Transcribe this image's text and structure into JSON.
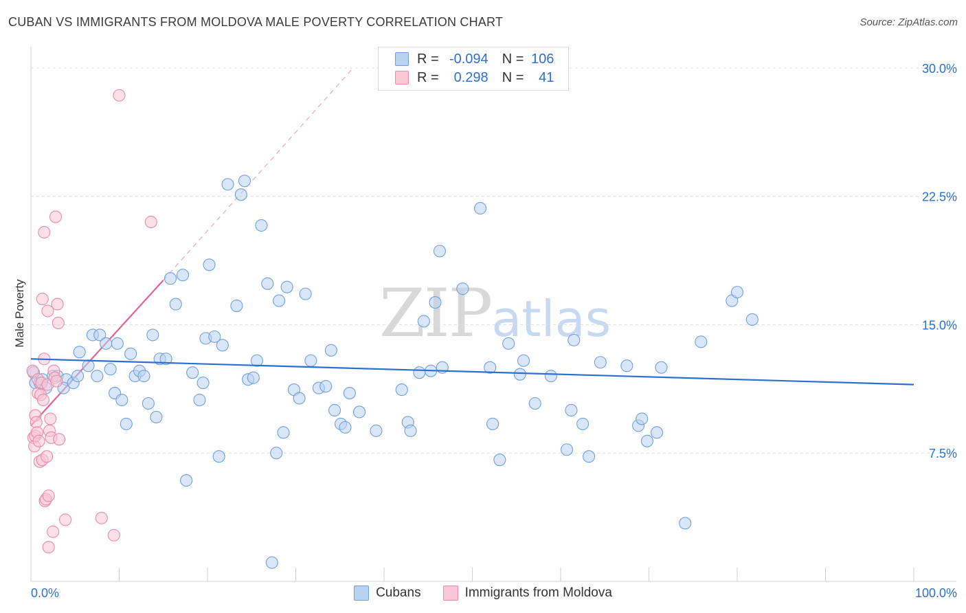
{
  "header": {
    "title": "CUBAN VS IMMIGRANTS FROM MOLDOVA MALE POVERTY CORRELATION CHART",
    "source": "Source: ZipAtlas.com"
  },
  "watermark": {
    "zip": "ZIP",
    "atlas": "atlas"
  },
  "legend_top": {
    "rows": [
      {
        "r_label": "R =",
        "r_value": "-0.094",
        "n_label": "N =",
        "n_value": "106"
      },
      {
        "r_label": "R =",
        "r_value": "0.298",
        "n_label": "N =",
        "n_value": "41"
      }
    ]
  },
  "legend_bottom": {
    "items": [
      "Cubans",
      "Immigrants from Moldova"
    ]
  },
  "colors": {
    "cubans_fill": "#b9d2f2",
    "cubans_stroke": "#6f9fdc",
    "cubans_line": "#2a70d0",
    "moldova_fill": "#f8c6d4",
    "moldova_stroke": "#e98aa8",
    "moldova_line": "#e0648c",
    "axis_label": "#2a6fd1"
  },
  "chart_data": {
    "type": "scatter",
    "title": "CUBAN VS IMMIGRANTS FROM MOLDOVA MALE POVERTY CORRELATION CHART",
    "xlabel": "",
    "ylabel": "Male Poverty",
    "xlim": [
      0,
      100
    ],
    "ylim": [
      0,
      31
    ],
    "x_tick_labels": [
      "0.0%",
      "100.0%"
    ],
    "y_ticks": [
      7.5,
      15.0,
      22.5,
      30.0
    ],
    "y_tick_labels": [
      "7.5%",
      "15.0%",
      "22.5%",
      "30.0%"
    ],
    "grid": true,
    "series": [
      {
        "name": "Cubans",
        "r": -0.094,
        "n": 106,
        "trend": {
          "x": [
            0,
            100
          ],
          "y": [
            13.0,
            11.5
          ]
        },
        "points": [
          [
            0.3,
            12.2
          ],
          [
            0.5,
            11.6
          ],
          [
            1.0,
            11.6
          ],
          [
            1.3,
            11.8
          ],
          [
            1.7,
            11.3
          ],
          [
            2.5,
            12.0
          ],
          [
            3.0,
            12.0
          ],
          [
            4.0,
            11.8
          ],
          [
            3.7,
            11.3
          ],
          [
            4.8,
            11.6
          ],
          [
            5.3,
            12.0
          ],
          [
            5.5,
            13.4
          ],
          [
            6.5,
            12.6
          ],
          [
            7.0,
            14.4
          ],
          [
            7.5,
            12.0
          ],
          [
            7.8,
            14.4
          ],
          [
            8.5,
            13.9
          ],
          [
            9.0,
            12.4
          ],
          [
            9.5,
            11.0
          ],
          [
            9.8,
            13.9
          ],
          [
            10.3,
            10.6
          ],
          [
            10.8,
            9.2
          ],
          [
            11.3,
            13.3
          ],
          [
            11.8,
            12.0
          ],
          [
            12.3,
            12.3
          ],
          [
            12.8,
            12.0
          ],
          [
            13.3,
            10.4
          ],
          [
            13.8,
            14.4
          ],
          [
            14.2,
            9.6
          ],
          [
            14.6,
            13.0
          ],
          [
            15.3,
            13.0
          ],
          [
            15.8,
            17.7
          ],
          [
            16.4,
            16.2
          ],
          [
            17.2,
            17.9
          ],
          [
            17.6,
            5.9
          ],
          [
            18.3,
            12.2
          ],
          [
            19.1,
            10.6
          ],
          [
            19.5,
            11.6
          ],
          [
            19.8,
            14.2
          ],
          [
            20.2,
            18.5
          ],
          [
            20.8,
            14.3
          ],
          [
            21.3,
            7.3
          ],
          [
            21.7,
            13.8
          ],
          [
            22.3,
            23.2
          ],
          [
            23.3,
            16.1
          ],
          [
            23.8,
            22.6
          ],
          [
            24.2,
            23.4
          ],
          [
            24.6,
            11.8
          ],
          [
            25.2,
            11.9
          ],
          [
            25.6,
            12.9
          ],
          [
            26.1,
            20.8
          ],
          [
            26.8,
            17.4
          ],
          [
            27.3,
            1.1
          ],
          [
            27.8,
            7.5
          ],
          [
            28.1,
            16.4
          ],
          [
            28.6,
            8.7
          ],
          [
            29.0,
            17.2
          ],
          [
            29.8,
            11.2
          ],
          [
            30.4,
            10.7
          ],
          [
            31.1,
            16.8
          ],
          [
            31.7,
            12.9
          ],
          [
            32.6,
            11.3
          ],
          [
            33.4,
            11.4
          ],
          [
            34.0,
            13.5
          ],
          [
            34.4,
            10.0
          ],
          [
            35.1,
            9.2
          ],
          [
            35.6,
            9.0
          ],
          [
            36.1,
            11.0
          ],
          [
            37.2,
            9.9
          ],
          [
            39.1,
            8.8
          ],
          [
            42.0,
            11.2
          ],
          [
            42.7,
            9.3
          ],
          [
            43.0,
            8.8
          ],
          [
            44.0,
            12.2
          ],
          [
            44.5,
            15.2
          ],
          [
            45.3,
            12.3
          ],
          [
            45.8,
            16.3
          ],
          [
            46.3,
            19.3
          ],
          [
            46.6,
            12.5
          ],
          [
            48.9,
            17.1
          ],
          [
            50.9,
            21.8
          ],
          [
            52.0,
            12.5
          ],
          [
            52.3,
            9.2
          ],
          [
            53.1,
            7.1
          ],
          [
            54.1,
            13.9
          ],
          [
            55.4,
            12.1
          ],
          [
            55.8,
            12.9
          ],
          [
            57.1,
            10.4
          ],
          [
            58.9,
            12.0
          ],
          [
            60.7,
            7.7
          ],
          [
            61.2,
            10.0
          ],
          [
            61.5,
            14.1
          ],
          [
            62.5,
            9.2
          ],
          [
            63.2,
            7.3
          ],
          [
            64.5,
            12.8
          ],
          [
            67.5,
            12.6
          ],
          [
            68.8,
            9.1
          ],
          [
            69.2,
            9.5
          ],
          [
            69.8,
            8.2
          ],
          [
            70.9,
            8.7
          ],
          [
            71.4,
            12.5
          ],
          [
            74.1,
            3.4
          ],
          [
            75.9,
            14.0
          ],
          [
            79.4,
            16.4
          ],
          [
            80.0,
            16.9
          ],
          [
            81.7,
            15.3
          ]
        ]
      },
      {
        "name": "Immigrants from Moldova",
        "r": 0.298,
        "n": 41,
        "trend": {
          "x": [
            0,
            15
          ],
          "y": [
            9.1,
            17.6
          ]
        },
        "trend_dashed_extension": {
          "x": [
            15,
            36.5
          ],
          "y": [
            17.6,
            30.0
          ]
        },
        "points": [
          [
            0.2,
            12.3
          ],
          [
            0.3,
            8.4
          ],
          [
            0.4,
            7.9
          ],
          [
            0.5,
            8.5
          ],
          [
            0.5,
            9.7
          ],
          [
            0.6,
            9.3
          ],
          [
            0.7,
            8.7
          ],
          [
            0.8,
            11.8
          ],
          [
            0.8,
            11.0
          ],
          [
            0.9,
            8.2
          ],
          [
            1.0,
            7.0
          ],
          [
            1.1,
            10.9
          ],
          [
            1.2,
            11.6
          ],
          [
            1.3,
            7.1
          ],
          [
            1.3,
            16.5
          ],
          [
            1.4,
            10.6
          ],
          [
            1.5,
            13.0
          ],
          [
            1.5,
            20.4
          ],
          [
            1.6,
            4.7
          ],
          [
            1.7,
            4.8
          ],
          [
            1.8,
            7.3
          ],
          [
            1.9,
            15.8
          ],
          [
            1.9,
            11.5
          ],
          [
            2.0,
            5.0
          ],
          [
            2.0,
            2.0
          ],
          [
            2.1,
            8.8
          ],
          [
            2.2,
            9.5
          ],
          [
            2.3,
            8.4
          ],
          [
            2.5,
            2.9
          ],
          [
            2.6,
            12.3
          ],
          [
            2.7,
            11.9
          ],
          [
            2.8,
            21.3
          ],
          [
            2.9,
            11.7
          ],
          [
            3.0,
            16.2
          ],
          [
            3.1,
            15.1
          ],
          [
            3.2,
            8.3
          ],
          [
            3.9,
            3.6
          ],
          [
            8.0,
            3.7
          ],
          [
            9.4,
            2.7
          ],
          [
            10.0,
            28.4
          ],
          [
            13.6,
            21.0
          ]
        ]
      }
    ]
  }
}
